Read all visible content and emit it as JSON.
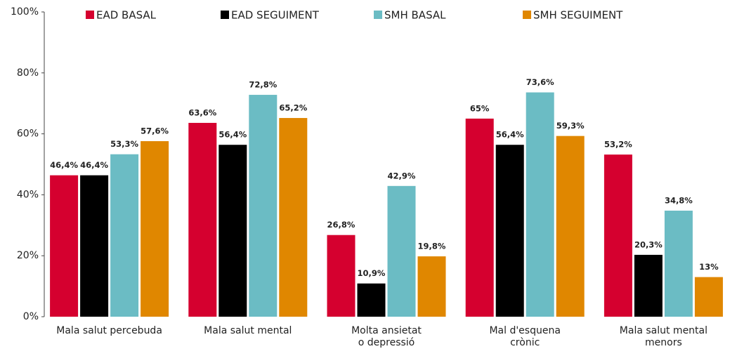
{
  "chart_data": {
    "type": "bar",
    "categories": [
      "Mala salut percebuda",
      "Mala salut mental",
      "Molta ansietat\no depressió",
      "Mal d'esquena\ncrònic",
      "Mala salut mental\nmenors"
    ],
    "series": [
      {
        "name": "EAD BASAL",
        "color": "#d5002f",
        "values": [
          46.4,
          63.6,
          26.8,
          65,
          53.2
        ],
        "value_labels": [
          "46,4%",
          "63,6%",
          "26,8%",
          "65%",
          "53,2%"
        ]
      },
      {
        "name": "EAD SEGUIMENT",
        "color": "#000000",
        "values": [
          46.4,
          56.4,
          10.9,
          56.4,
          20.3
        ],
        "value_labels": [
          "46,4%",
          "56,4%",
          "10,9%",
          "56,4%",
          "20,3%"
        ]
      },
      {
        "name": "SMH BASAL",
        "color": "#6bbcc4",
        "values": [
          53.3,
          72.8,
          42.9,
          73.6,
          34.8
        ],
        "value_labels": [
          "53,3%",
          "72,8%",
          "42,9%",
          "73,6%",
          "34,8%"
        ]
      },
      {
        "name": "SMH SEGUIMENT",
        "color": "#e08700",
        "values": [
          57.6,
          65.2,
          19.8,
          59.3,
          13
        ],
        "value_labels": [
          "57,6%",
          "65,2%",
          "19,8%",
          "59,3%",
          "13%"
        ]
      }
    ],
    "ylim": [
      0,
      100
    ],
    "yticks": [
      {
        "value": 0,
        "label": "0%"
      },
      {
        "value": 20,
        "label": "20%"
      },
      {
        "value": 40,
        "label": "40%"
      },
      {
        "value": 60,
        "label": "60%"
      },
      {
        "value": 80,
        "label": "80%"
      },
      {
        "value": 100,
        "label": "100%"
      }
    ],
    "legend": "top"
  }
}
